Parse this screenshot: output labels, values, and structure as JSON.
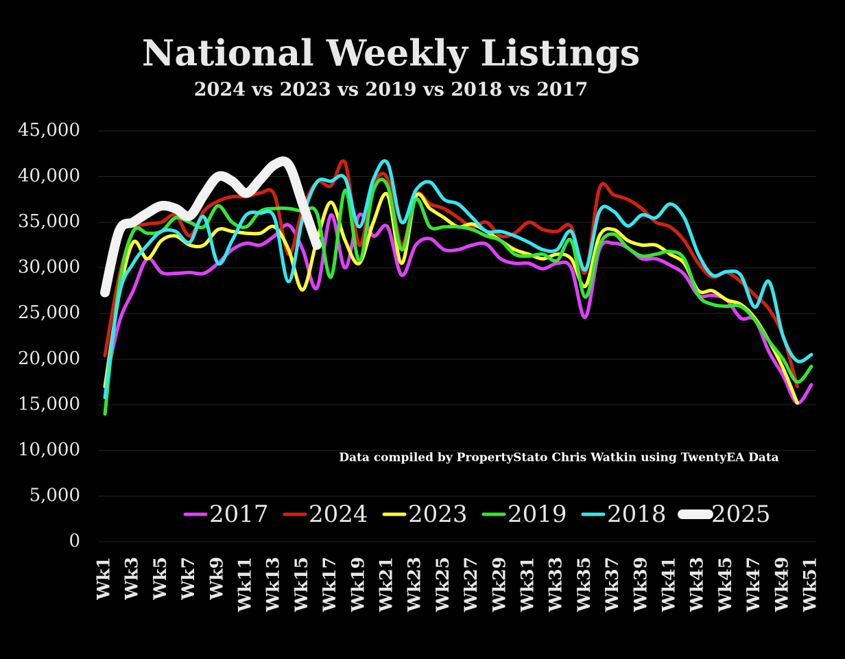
{
  "chart_data": {
    "type": "line",
    "title": "National Weekly Listings",
    "subtitle": "2024 vs 2023 vs 2019 vs 2018 vs 2017",
    "annotation": "Data compiled by PropertyStato Chris Watkin using TwentyEA Data",
    "categories": [
      "Wk1",
      null,
      "Wk3",
      null,
      "Wk5",
      null,
      "Wk7",
      null,
      "Wk9",
      null,
      "Wk11",
      null,
      "Wk13",
      null,
      "Wk15",
      null,
      "Wk17",
      null,
      "Wk19",
      null,
      "Wk21",
      null,
      "Wk23",
      null,
      "Wk25",
      null,
      "Wk27",
      null,
      "Wk29",
      null,
      "Wk31",
      null,
      "Wk33",
      null,
      "Wk35",
      null,
      "Wk37",
      null,
      "Wk39",
      null,
      "Wk41",
      null,
      "Wk43",
      null,
      "Wk45",
      null,
      "Wk47",
      null,
      "Wk49",
      null,
      "Wk51"
    ],
    "ylim": [
      0,
      45000
    ],
    "yticks": [
      0,
      {
        "value": 5000,
        "label": "5,000"
      },
      {
        "value": 10000,
        "label": "10,000"
      },
      {
        "value": 15000,
        "label": "15,000"
      },
      {
        "value": 20000,
        "label": "20,000"
      },
      {
        "value": 25000,
        "label": "25,000"
      },
      {
        "value": 30000,
        "label": "30,000"
      },
      {
        "value": 35000,
        "label": "35,000"
      },
      {
        "value": 40000,
        "label": "40,000"
      },
      {
        "value": 45000,
        "label": "45,000"
      }
    ],
    "grid": true,
    "series": [
      {
        "name": "2017",
        "color": "#e040fb",
        "values": [
          17000,
          24000,
          27500,
          31000,
          29500,
          29400,
          29500,
          29400,
          30500,
          32000,
          32700,
          32500,
          33500,
          34700,
          32000,
          27800,
          35800,
          30000,
          35800,
          33500,
          34500,
          29200,
          32500,
          33200,
          32000,
          32000,
          32500,
          32600,
          31000,
          30500,
          30500,
          29900,
          30500,
          30000,
          24600,
          32000,
          32700,
          32200,
          31000,
          31000,
          30300,
          29300,
          27000,
          27000,
          26500,
          24500,
          24300,
          20800,
          18200,
          15200,
          17200
        ]
      },
      {
        "name": "2024",
        "color": "#d42010",
        "values": [
          20400,
          29000,
          34000,
          34800,
          35000,
          35800,
          33500,
          36200,
          37300,
          37800,
          37800,
          38200,
          38000,
          31500,
          36500,
          39400,
          39000,
          41500,
          32500,
          39000,
          39800,
          32500,
          38000,
          37000,
          36500,
          35500,
          34500,
          35000,
          33500,
          33800,
          35000,
          34200,
          34000,
          34500,
          29500,
          38700,
          38000,
          37500,
          36500,
          35000,
          34500,
          33000,
          30500,
          29000,
          29500,
          28500,
          27000,
          25500,
          22500,
          17000,
          null
        ]
      },
      {
        "name": "2023",
        "color": "#ffff33",
        "values": [
          17000,
          27000,
          32800,
          31000,
          33000,
          33500,
          32500,
          32500,
          34200,
          34000,
          33800,
          33800,
          34500,
          32000,
          27600,
          33000,
          37200,
          33000,
          30500,
          35000,
          38000,
          30500,
          37800,
          36500,
          35500,
          34500,
          34800,
          34000,
          33000,
          32000,
          31500,
          31000,
          31500,
          31000,
          28000,
          33500,
          34200,
          33000,
          32500,
          32500,
          31500,
          30500,
          27500,
          27500,
          26500,
          26000,
          24500,
          22000,
          19000,
          15200,
          null
        ]
      },
      {
        "name": "2019",
        "color": "#33e633",
        "values": [
          14000,
          28000,
          34000,
          33800,
          34000,
          35500,
          35000,
          34500,
          36800,
          35000,
          34500,
          36200,
          36500,
          36500,
          36200,
          36000,
          29000,
          38500,
          30800,
          38500,
          39000,
          32000,
          37500,
          34500,
          34500,
          34500,
          34200,
          33500,
          33000,
          31500,
          31300,
          31500,
          30800,
          33000,
          26800,
          32500,
          33700,
          32200,
          31300,
          31500,
          31800,
          31000,
          27000,
          26000,
          25800,
          25800,
          24300,
          22000,
          20000,
          17500,
          19200
        ]
      },
      {
        "name": "2018",
        "color": "#33e8f0",
        "values": [
          15800,
          27000,
          30500,
          32500,
          34000,
          34000,
          32800,
          35600,
          30500,
          33000,
          35800,
          36000,
          35500,
          28500,
          35500,
          39400,
          39500,
          39800,
          34500,
          39700,
          41500,
          35000,
          38500,
          39400,
          37500,
          37000,
          35500,
          34000,
          34000,
          33500,
          32800,
          32000,
          32000,
          34000,
          29800,
          36200,
          36200,
          34600,
          35800,
          35500,
          37000,
          35500,
          31500,
          29200,
          29600,
          29200,
          25700,
          28500,
          22500,
          19800,
          20500
        ]
      },
      {
        "name": "2025",
        "color": "#f2f2f2",
        "values": [
          27300,
          34000,
          35000,
          36000,
          36800,
          36500,
          35700,
          38000,
          40000,
          39500,
          38200,
          39700,
          41300,
          41300,
          37000,
          32500,
          null,
          null,
          null,
          null,
          null,
          null,
          null,
          null,
          null,
          null,
          null,
          null,
          null,
          null,
          null,
          null,
          null,
          null,
          null,
          null,
          null,
          null,
          null,
          null,
          null,
          null,
          null,
          null,
          null,
          null,
          null,
          null,
          null,
          null,
          null
        ]
      }
    ]
  }
}
